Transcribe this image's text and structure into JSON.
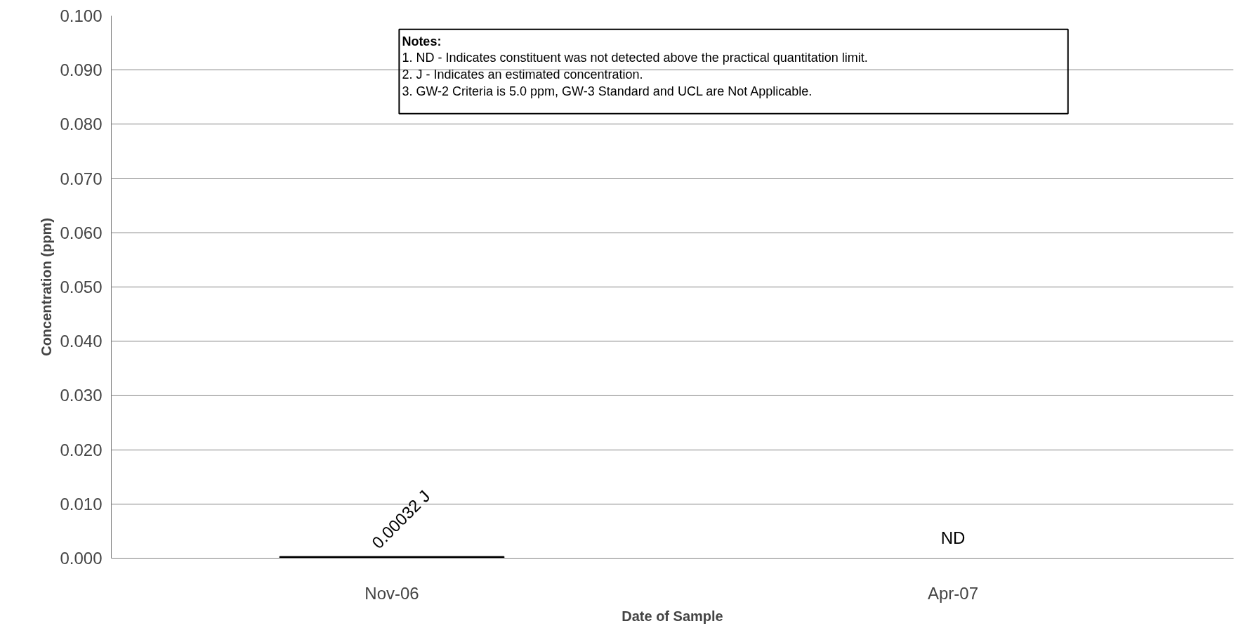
{
  "chart_data": {
    "type": "bar",
    "xlabel": "Date of Sample",
    "ylabel": "Concentration (ppm)",
    "categories": [
      "Nov-06",
      "Apr-07"
    ],
    "values": [
      0.00032,
      null
    ],
    "value_labels": [
      "0.00032 J",
      "ND"
    ],
    "color": "#000000",
    "ylim": [
      0,
      0.1
    ],
    "yticks": [
      {
        "value": 0,
        "label": "0.000"
      },
      {
        "value": 0.01,
        "label": "0.010"
      },
      {
        "value": 0.02,
        "label": "0.020"
      },
      {
        "value": 0.03,
        "label": "0.030"
      },
      {
        "value": 0.04,
        "label": "0.040"
      },
      {
        "value": 0.05,
        "label": "0.050"
      },
      {
        "value": 0.06,
        "label": "0.060"
      },
      {
        "value": 0.07,
        "label": "0.070"
      },
      {
        "value": 0.08,
        "label": "0.080"
      },
      {
        "value": 0.09,
        "label": "0.090"
      },
      {
        "value": 0.1,
        "label": "0.100"
      }
    ],
    "grid": "y",
    "annotations": [
      "Notes:",
      "1. ND - Indicates constituent was not detected above the practical quantitation limit.",
      "2. J - Indicates an estimated concentration.",
      "3. GW-2 Criteria is 5.0 ppm, GW-3 Standard and UCL are Not Applicable."
    ]
  }
}
